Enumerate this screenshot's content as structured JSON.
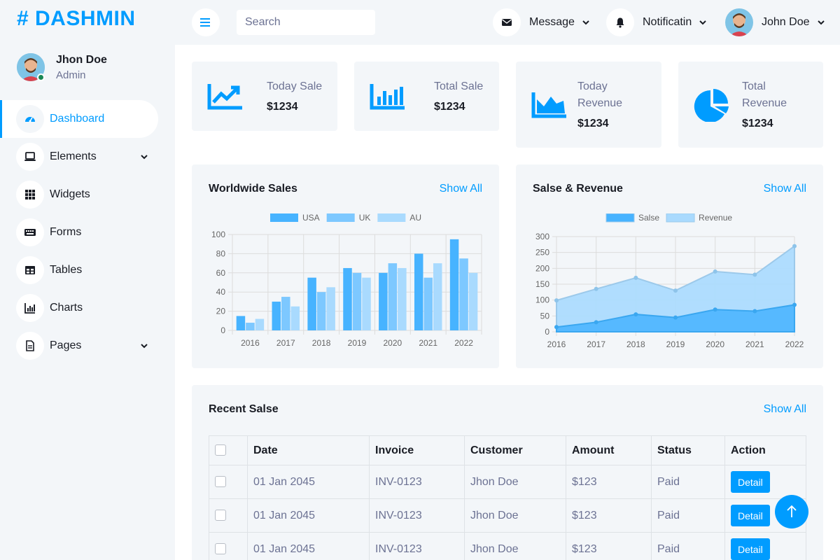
{
  "brand": {
    "text": "# DASHMIN"
  },
  "profile": {
    "name": "Jhon Doe",
    "role": "Admin"
  },
  "sidebar": {
    "items": [
      {
        "label": "Dashboard",
        "icon": "tachometer-icon",
        "active": true
      },
      {
        "label": "Elements",
        "icon": "laptop-icon",
        "dropdown": true
      },
      {
        "label": "Widgets",
        "icon": "grid-icon"
      },
      {
        "label": "Forms",
        "icon": "keyboard-icon"
      },
      {
        "label": "Tables",
        "icon": "table-icon"
      },
      {
        "label": "Charts",
        "icon": "chart-bar-icon"
      },
      {
        "label": "Pages",
        "icon": "file-icon",
        "dropdown": true
      }
    ]
  },
  "topbar": {
    "search_placeholder": "Search",
    "message_label": "Message",
    "notification_label": "Notificatin",
    "user_name": "John Doe"
  },
  "stats": [
    {
      "label": "Today Sale",
      "value": "$1234",
      "icon": "chart-line-icon"
    },
    {
      "label": "Total Sale",
      "value": "$1234",
      "icon": "chart-bar-icon"
    },
    {
      "label": "Today Revenue",
      "value": "$1234",
      "icon": "chart-area-icon"
    },
    {
      "label": "Total Revenue",
      "value": "$1234",
      "icon": "chart-pie-icon"
    }
  ],
  "worldwide": {
    "title": "Worldwide Sales",
    "show_all": "Show All"
  },
  "sales_revenue": {
    "title": "Salse & Revenue",
    "show_all": "Show All"
  },
  "chart_data": [
    {
      "type": "bar",
      "categories": [
        "2016",
        "2017",
        "2018",
        "2019",
        "2020",
        "2021",
        "2022"
      ],
      "series": [
        {
          "name": "USA",
          "values": [
            15,
            30,
            55,
            65,
            60,
            80,
            95
          ],
          "color": "#47b3ff"
        },
        {
          "name": "UK",
          "values": [
            8,
            35,
            40,
            60,
            70,
            55,
            75
          ],
          "color": "#7dc8ff"
        },
        {
          "name": "AU",
          "values": [
            12,
            25,
            45,
            55,
            65,
            70,
            60
          ],
          "color": "#a9dafe"
        }
      ],
      "ylim": [
        0,
        100
      ],
      "yticks": [
        "0",
        "20",
        "40",
        "60",
        "80",
        "100"
      ],
      "legend": "top",
      "grid": true
    },
    {
      "type": "area",
      "categories": [
        "2016",
        "2017",
        "2018",
        "2019",
        "2020",
        "2021",
        "2022"
      ],
      "series": [
        {
          "name": "Salse",
          "values": [
            15,
            30,
            55,
            45,
            70,
            65,
            85
          ],
          "color": "#47b3ff"
        },
        {
          "name": "Revenue",
          "values": [
            99,
            135,
            170,
            130,
            190,
            180,
            270
          ],
          "color": "#a9dafe"
        }
      ],
      "ylim": [
        0,
        300
      ],
      "yticks": [
        "0",
        "50",
        "100",
        "150",
        "200",
        "250",
        "300"
      ],
      "legend": "top",
      "grid": true
    }
  ],
  "recent": {
    "title": "Recent Salse",
    "show_all": "Show All",
    "columns": [
      "Date",
      "Invoice",
      "Customer",
      "Amount",
      "Status",
      "Action"
    ],
    "rows": [
      {
        "date": "01 Jan 2045",
        "invoice": "INV-0123",
        "customer": "Jhon Doe",
        "amount": "$123",
        "status": "Paid",
        "action": "Detail"
      },
      {
        "date": "01 Jan 2045",
        "invoice": "INV-0123",
        "customer": "Jhon Doe",
        "amount": "$123",
        "status": "Paid",
        "action": "Detail"
      },
      {
        "date": "01 Jan 2045",
        "invoice": "INV-0123",
        "customer": "Jhon Doe",
        "amount": "$123",
        "status": "Paid",
        "action": "Detail"
      }
    ]
  },
  "colors": {
    "primary": "#009cff",
    "light": "#f3f6f9",
    "dark": "#191c24",
    "muted": "#6c7293"
  }
}
